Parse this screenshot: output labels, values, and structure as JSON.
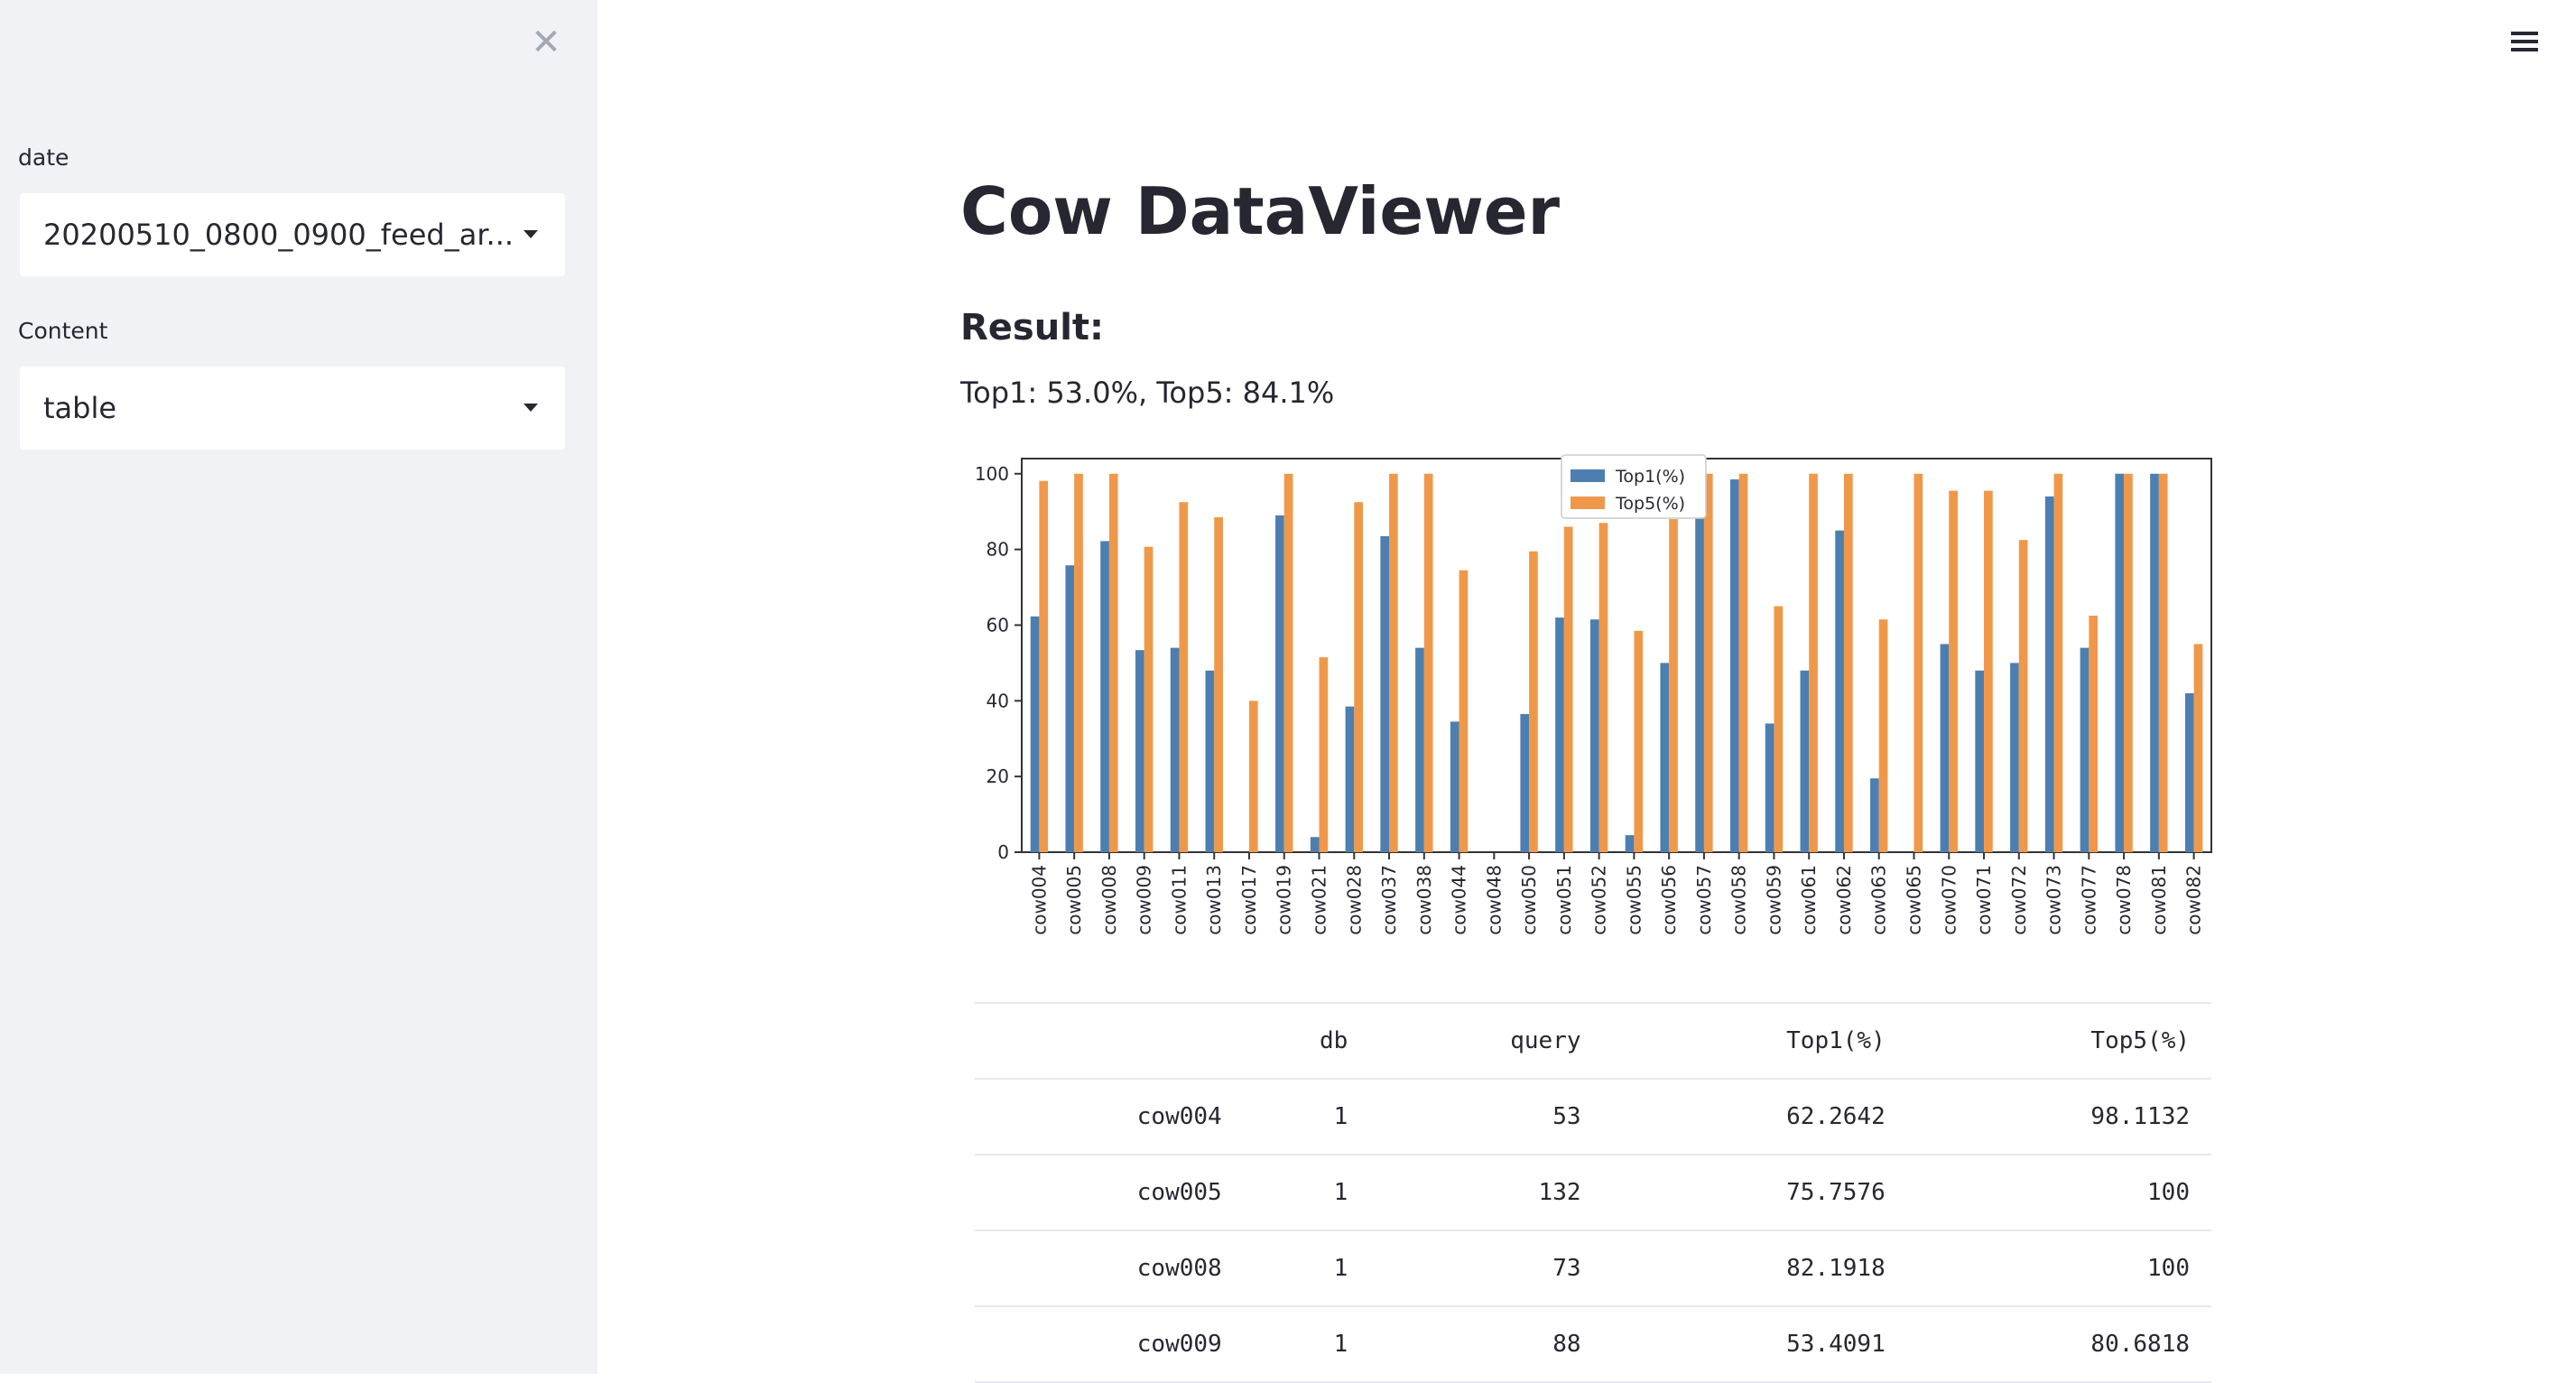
{
  "sidebar": {
    "close_icon": "close-icon",
    "date_label": "date",
    "date_value": "20200510_0800_0900_feed_ar...",
    "content_label": "Content",
    "content_value": "table"
  },
  "header": {
    "menu_icon": "hamburger-menu-icon"
  },
  "main": {
    "title": "Cow DataViewer",
    "result_heading": "Result:",
    "result_text": "Top1: 53.0%, Top5: 84.1%"
  },
  "chart_data": {
    "type": "bar",
    "title": "",
    "xlabel": "",
    "ylabel": "",
    "ylim": [
      0,
      104
    ],
    "yticks": [
      0,
      20,
      40,
      60,
      80,
      100
    ],
    "legend_position": "top-center",
    "categories": [
      "cow004",
      "cow005",
      "cow008",
      "cow009",
      "cow011",
      "cow013",
      "cow017",
      "cow019",
      "cow021",
      "cow028",
      "cow037",
      "cow038",
      "cow044",
      "cow048",
      "cow050",
      "cow051",
      "cow052",
      "cow055",
      "cow056",
      "cow057",
      "cow058",
      "cow059",
      "cow061",
      "cow062",
      "cow063",
      "cow065",
      "cow070",
      "cow071",
      "cow072",
      "cow073",
      "cow077",
      "cow078",
      "cow081",
      "cow082"
    ],
    "series": [
      {
        "name": "Top1(%)",
        "color": "#4c7fb0",
        "values": [
          62.3,
          75.8,
          82.2,
          53.4,
          54,
          48,
          0,
          89,
          4,
          38.5,
          83.5,
          54,
          34.5,
          0,
          36.5,
          62,
          61.5,
          4.5,
          50,
          100,
          98.5,
          34,
          48,
          85,
          19.5,
          0,
          55,
          48,
          50,
          94,
          54,
          100,
          100,
          42
        ]
      },
      {
        "name": "Top5(%)",
        "color": "#f0984a",
        "values": [
          98.1,
          100,
          100,
          80.7,
          92.5,
          88.5,
          40,
          100,
          51.5,
          92.5,
          100,
          100,
          74.5,
          0,
          79.5,
          86,
          87,
          58.5,
          88,
          100,
          100,
          65,
          100,
          100,
          61.5,
          100,
          95.5,
          95.5,
          82.5,
          100,
          62.5,
          100,
          100,
          55
        ]
      }
    ]
  },
  "table": {
    "columns": [
      "",
      "db",
      "query",
      "Top1(%)",
      "Top5(%)"
    ],
    "rows": [
      [
        "cow004",
        "1",
        "53",
        "62.2642",
        "98.1132"
      ],
      [
        "cow005",
        "1",
        "132",
        "75.7576",
        "100"
      ],
      [
        "cow008",
        "1",
        "73",
        "82.1918",
        "100"
      ],
      [
        "cow009",
        "1",
        "88",
        "53.4091",
        "80.6818"
      ]
    ]
  }
}
